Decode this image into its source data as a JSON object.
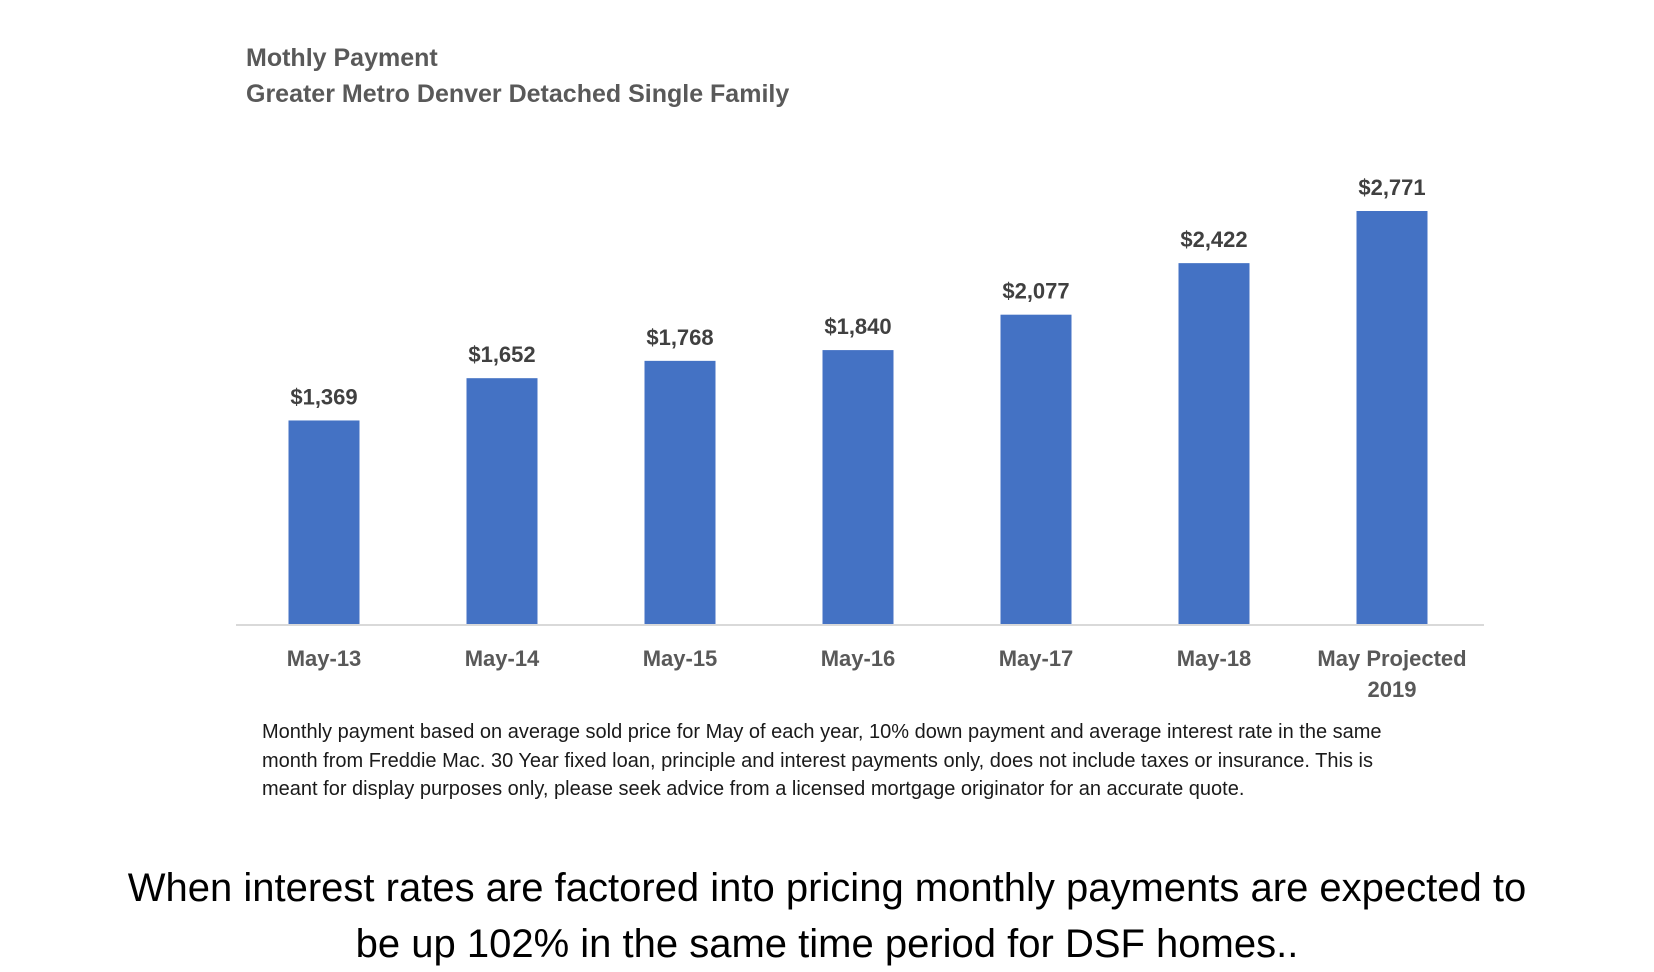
{
  "chart_data": {
    "type": "bar",
    "title": "Mothly Payment",
    "subtitle": "Greater Metro Denver Detached Single Family",
    "categories": [
      [
        "May-13"
      ],
      [
        "May-14"
      ],
      [
        "May-15"
      ],
      [
        "May-16"
      ],
      [
        "May-17"
      ],
      [
        "May-18"
      ],
      [
        "May Projected",
        "2019"
      ]
    ],
    "values": [
      1369,
      1652,
      1768,
      1840,
      2077,
      2422,
      2771
    ],
    "data_labels": [
      "$1,369",
      "$1,652",
      "$1,768",
      "$1,840",
      "$2,077",
      "$2,422",
      "$2,771"
    ],
    "ylim": [
      0,
      2771
    ],
    "grid": false,
    "legend": "none",
    "bar_color": "#4472c4",
    "xlabel": "",
    "ylabel": ""
  },
  "footnote": {
    "lines": [
      "Monthly payment based on average sold price for May of each year, 10% down payment and average interest rate in the same",
      "month from Freddie Mac. 30 Year fixed loan, principle and interest payments only, does not include taxes or insurance. This is",
      "meant for display purposes only, please seek advice from a licensed mortgage originator for an accurate quote."
    ]
  },
  "caption": {
    "lines": [
      "When interest rates are factored into pricing monthly payments are expected to",
      "be up 102% in the same time period for DSF homes.."
    ]
  }
}
